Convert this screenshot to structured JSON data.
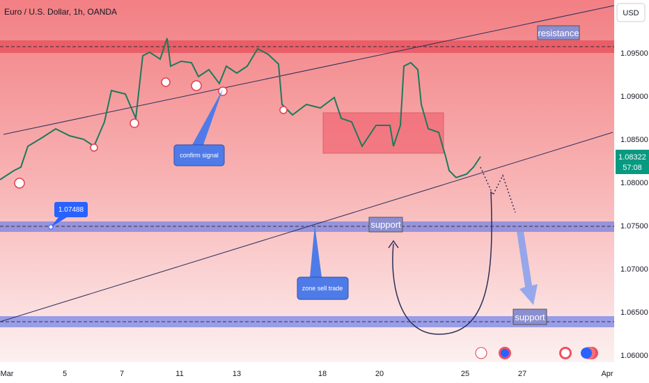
{
  "header": {
    "title": "Euro / U.S. Dollar, 1h, OANDA",
    "currency": "USD"
  },
  "price_axis": {
    "labels": [
      "1.09500",
      "1.09000",
      "1.08500",
      "1.08000",
      "1.07500",
      "1.07000",
      "1.06500",
      "1.06000"
    ]
  },
  "time_axis": {
    "labels": [
      "Mar",
      "5",
      "7",
      "11",
      "13",
      "18",
      "20",
      "25",
      "27",
      "Apr"
    ]
  },
  "price_badge": {
    "price": "1.08322",
    "countdown": "57:08"
  },
  "annotations": {
    "resistance": "resistance",
    "support_upper": "support",
    "support_lower": "support",
    "price_callout": "1.07488",
    "confirm": "confirm signal",
    "zone": "zone  sell  trade"
  }
}
